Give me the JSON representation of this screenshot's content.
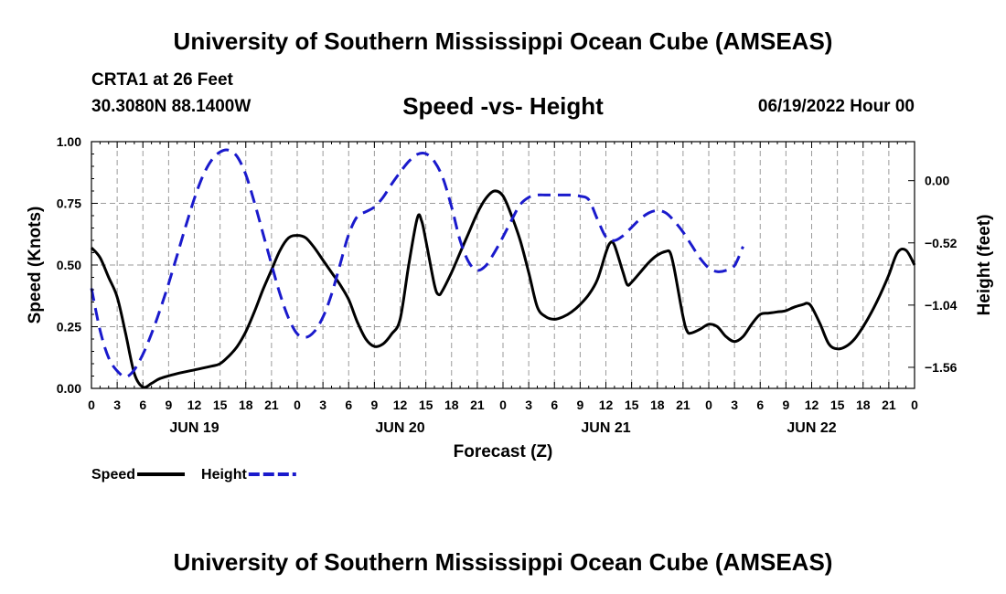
{
  "header": {
    "title": "University of Southern Mississippi Ocean Cube (AMSEAS)",
    "station": "CRTA1 at 26 Feet",
    "coords": "30.3080N  88.1400W",
    "chart_title": "Speed -vs- Height",
    "run_time": "06/19/2022 Hour 00"
  },
  "footer": {
    "title": "University of Southern Mississippi Ocean Cube (AMSEAS)"
  },
  "colors": {
    "speed": "#000000",
    "height": "#1a1acc",
    "grid": "#9a9a9a"
  },
  "chart_data": {
    "type": "line",
    "title": "Speed -vs- Height",
    "xlabel": "Forecast (Z)",
    "ylabel": "Speed (Knots)",
    "y2label": "Height (feet)",
    "xlim": [
      0,
      96
    ],
    "ylim": [
      0,
      1
    ],
    "y2lim": [
      -1.736,
      0.326
    ],
    "grid": true,
    "x_tick_step": 3,
    "x_tick_labels": [
      "0",
      "3",
      "6",
      "9",
      "12",
      "15",
      "18",
      "21",
      "0",
      "3",
      "6",
      "9",
      "12",
      "15",
      "18",
      "21",
      "0",
      "3",
      "6",
      "9",
      "12",
      "15",
      "18",
      "21",
      "0",
      "3",
      "6",
      "9",
      "12",
      "15",
      "18",
      "21",
      "0"
    ],
    "y_ticks": [
      {
        "value": 0.0,
        "label": "0.00"
      },
      {
        "value": 0.25,
        "label": "0.25"
      },
      {
        "value": 0.5,
        "label": "0.50"
      },
      {
        "value": 0.75,
        "label": "0.75"
      },
      {
        "value": 1.0,
        "label": "1.00"
      }
    ],
    "y2_ticks": [
      {
        "value": 0.0,
        "label": "0.00"
      },
      {
        "value": -0.52,
        "label": "−0.52"
      },
      {
        "value": -1.04,
        "label": "−1.04"
      },
      {
        "value": -1.56,
        "label": "−1.56"
      }
    ],
    "date_labels": [
      {
        "hour": 12,
        "label": "JUN 19"
      },
      {
        "hour": 36,
        "label": "JUN 20"
      },
      {
        "hour": 60,
        "label": "JUN 21"
      },
      {
        "hour": 84,
        "label": "JUN 22"
      }
    ],
    "legend": [
      {
        "name": "Speed",
        "series": "speed"
      },
      {
        "name": "Height",
        "series": "height"
      }
    ],
    "series": [
      {
        "name": "Speed",
        "key": "speed",
        "axis": "left",
        "style": "solid",
        "points": [
          [
            0,
            0.57
          ],
          [
            1,
            0.53
          ],
          [
            2,
            0.45
          ],
          [
            3,
            0.37
          ],
          [
            4,
            0.22
          ],
          [
            5,
            0.06
          ],
          [
            6,
            0.005
          ],
          [
            7,
            0.02
          ],
          [
            8,
            0.04
          ],
          [
            10,
            0.06
          ],
          [
            12,
            0.075
          ],
          [
            14,
            0.09
          ],
          [
            15,
            0.1
          ],
          [
            16,
            0.13
          ],
          [
            17,
            0.17
          ],
          [
            18,
            0.23
          ],
          [
            19,
            0.31
          ],
          [
            20,
            0.4
          ],
          [
            21,
            0.48
          ],
          [
            22,
            0.56
          ],
          [
            23,
            0.61
          ],
          [
            24,
            0.62
          ],
          [
            25,
            0.61
          ],
          [
            26,
            0.57
          ],
          [
            27,
            0.52
          ],
          [
            28,
            0.47
          ],
          [
            29,
            0.42
          ],
          [
            30,
            0.36
          ],
          [
            31,
            0.27
          ],
          [
            32,
            0.2
          ],
          [
            33,
            0.17
          ],
          [
            34,
            0.18
          ],
          [
            35,
            0.22
          ],
          [
            36,
            0.28
          ],
          [
            37,
            0.5
          ],
          [
            38,
            0.69
          ],
          [
            38.5,
            0.68
          ],
          [
            39,
            0.6
          ],
          [
            40,
            0.42
          ],
          [
            40.5,
            0.38
          ],
          [
            41,
            0.4
          ],
          [
            42,
            0.47
          ],
          [
            43,
            0.55
          ],
          [
            44,
            0.63
          ],
          [
            45,
            0.71
          ],
          [
            46,
            0.77
          ],
          [
            47,
            0.8
          ],
          [
            48,
            0.78
          ],
          [
            49,
            0.7
          ],
          [
            50,
            0.6
          ],
          [
            51,
            0.47
          ],
          [
            52,
            0.33
          ],
          [
            53,
            0.29
          ],
          [
            54,
            0.28
          ],
          [
            55,
            0.29
          ],
          [
            56,
            0.31
          ],
          [
            57,
            0.34
          ],
          [
            58,
            0.38
          ],
          [
            59,
            0.44
          ],
          [
            60,
            0.55
          ],
          [
            60.5,
            0.59
          ],
          [
            61,
            0.58
          ],
          [
            62,
            0.47
          ],
          [
            62.5,
            0.42
          ],
          [
            63,
            0.43
          ],
          [
            64,
            0.47
          ],
          [
            65,
            0.51
          ],
          [
            66,
            0.54
          ],
          [
            67,
            0.555
          ],
          [
            67.5,
            0.55
          ],
          [
            68,
            0.48
          ],
          [
            69,
            0.29
          ],
          [
            69.5,
            0.23
          ],
          [
            70,
            0.225
          ],
          [
            71,
            0.24
          ],
          [
            72,
            0.26
          ],
          [
            73,
            0.25
          ],
          [
            74,
            0.21
          ],
          [
            75,
            0.19
          ],
          [
            76,
            0.21
          ],
          [
            77,
            0.26
          ],
          [
            78,
            0.3
          ],
          [
            79,
            0.305
          ],
          [
            80,
            0.31
          ],
          [
            81,
            0.315
          ],
          [
            82,
            0.33
          ],
          [
            83,
            0.34
          ],
          [
            83.5,
            0.345
          ],
          [
            84,
            0.33
          ],
          [
            85,
            0.26
          ],
          [
            86,
            0.18
          ],
          [
            87,
            0.16
          ],
          [
            88,
            0.17
          ],
          [
            89,
            0.2
          ],
          [
            90,
            0.25
          ],
          [
            91,
            0.31
          ],
          [
            92,
            0.38
          ],
          [
            93,
            0.46
          ],
          [
            94,
            0.55
          ],
          [
            95,
            0.56
          ],
          [
            96,
            0.5
          ]
        ]
      },
      {
        "name": "Height",
        "key": "height",
        "axis": "right",
        "style": "dashed",
        "points": [
          [
            0,
            -0.9
          ],
          [
            1,
            -1.25
          ],
          [
            2,
            -1.48
          ],
          [
            3,
            -1.59
          ],
          [
            4,
            -1.64
          ],
          [
            5,
            -1.58
          ],
          [
            6,
            -1.45
          ],
          [
            7,
            -1.28
          ],
          [
            8,
            -1.08
          ],
          [
            9,
            -0.86
          ],
          [
            10,
            -0.62
          ],
          [
            11,
            -0.38
          ],
          [
            12,
            -0.15
          ],
          [
            13,
            0.04
          ],
          [
            14,
            0.17
          ],
          [
            15,
            0.24
          ],
          [
            16,
            0.255
          ],
          [
            17,
            0.2
          ],
          [
            18,
            0.05
          ],
          [
            19,
            -0.18
          ],
          [
            20,
            -0.44
          ],
          [
            21,
            -0.7
          ],
          [
            22,
            -0.95
          ],
          [
            23,
            -1.15
          ],
          [
            24,
            -1.28
          ],
          [
            25,
            -1.31
          ],
          [
            26,
            -1.26
          ],
          [
            27,
            -1.14
          ],
          [
            28,
            -0.95
          ],
          [
            29,
            -0.7
          ],
          [
            30,
            -0.45
          ],
          [
            31,
            -0.3
          ],
          [
            32,
            -0.26
          ],
          [
            33,
            -0.22
          ],
          [
            34,
            -0.14
          ],
          [
            35,
            -0.03
          ],
          [
            36,
            0.07
          ],
          [
            37,
            0.16
          ],
          [
            38,
            0.22
          ],
          [
            39,
            0.225
          ],
          [
            40,
            0.16
          ],
          [
            41,
            0.02
          ],
          [
            42,
            -0.22
          ],
          [
            43,
            -0.5
          ],
          [
            44,
            -0.68
          ],
          [
            45,
            -0.75
          ],
          [
            46,
            -0.71
          ],
          [
            47,
            -0.6
          ],
          [
            48,
            -0.47
          ],
          [
            49,
            -0.33
          ],
          [
            50,
            -0.2
          ],
          [
            51,
            -0.14
          ],
          [
            52,
            -0.12
          ],
          [
            53,
            -0.12
          ],
          [
            54,
            -0.12
          ],
          [
            55,
            -0.12
          ],
          [
            56,
            -0.12
          ],
          [
            57,
            -0.13
          ],
          [
            58,
            -0.16
          ],
          [
            59,
            -0.32
          ],
          [
            60,
            -0.47
          ],
          [
            61,
            -0.5
          ],
          [
            62,
            -0.46
          ],
          [
            63,
            -0.39
          ],
          [
            64,
            -0.32
          ],
          [
            65,
            -0.27
          ],
          [
            66,
            -0.25
          ],
          [
            67,
            -0.27
          ],
          [
            68,
            -0.34
          ],
          [
            69,
            -0.43
          ],
          [
            70,
            -0.54
          ],
          [
            71,
            -0.65
          ],
          [
            72,
            -0.73
          ],
          [
            73,
            -0.76
          ],
          [
            74,
            -0.75
          ],
          [
            75,
            -0.71
          ],
          [
            76,
            -0.55
          ]
        ]
      }
    ]
  }
}
